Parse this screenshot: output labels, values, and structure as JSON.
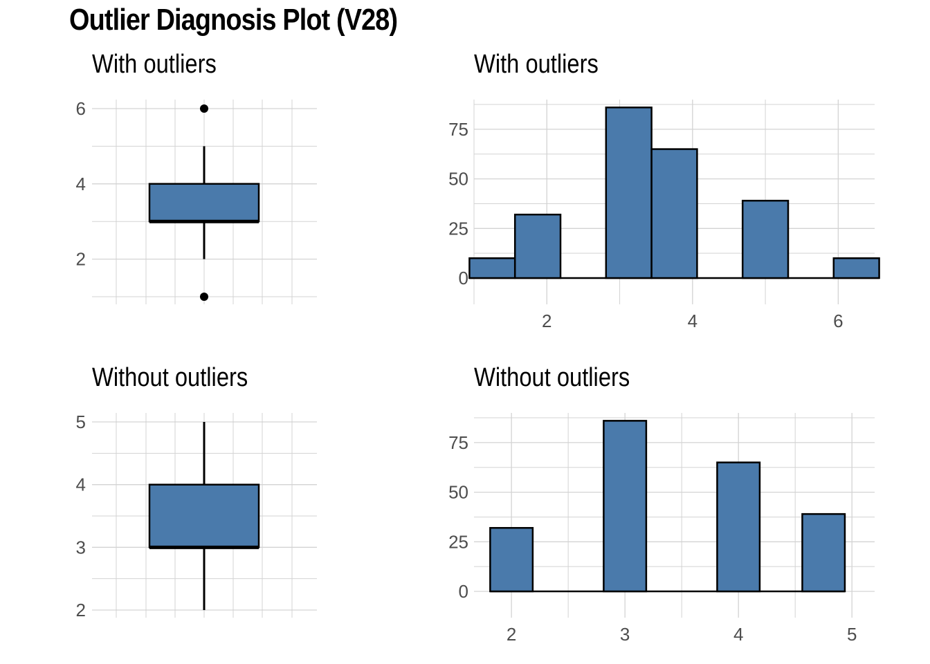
{
  "title": "Outlier Diagnosis Plot (V28)",
  "colors": {
    "fill": "#4a7aab",
    "outline": "#000000",
    "grid": "#d3d3d3",
    "text": "#4d4d4d"
  },
  "chart_data": [
    {
      "type": "box",
      "title": "With outliers",
      "ylim": [
        1,
        6
      ],
      "yticks": [
        2,
        4,
        6
      ],
      "q1": 3,
      "median": 3,
      "q3": 4,
      "whisker_low": 2,
      "whisker_high": 5,
      "outliers": [
        1,
        6
      ],
      "grid": true
    },
    {
      "type": "bar",
      "title": "With outliers",
      "x": [
        1.25,
        1.875,
        3.125,
        3.75,
        5.0,
        6.25
      ],
      "values": [
        10,
        32,
        86,
        65,
        39,
        10
      ],
      "xlim": [
        1,
        6.5
      ],
      "ylim": [
        0,
        90
      ],
      "xticks": [
        2,
        4,
        6
      ],
      "yticks": [
        0,
        25,
        50,
        75
      ],
      "grid": true
    },
    {
      "type": "box",
      "title": "Without outliers",
      "ylim": [
        2,
        5
      ],
      "yticks": [
        2,
        3,
        4,
        5
      ],
      "q1": 3,
      "median": 3,
      "q3": 4,
      "whisker_low": 2,
      "whisker_high": 5,
      "outliers": [],
      "grid": true
    },
    {
      "type": "bar",
      "title": "Without outliers",
      "x": [
        2,
        3,
        4,
        4.75
      ],
      "values": [
        32,
        86,
        65,
        39
      ],
      "xlim": [
        1.67,
        5.2
      ],
      "ylim": [
        0,
        90
      ],
      "xticks": [
        2,
        3,
        4,
        5
      ],
      "yticks": [
        0,
        25,
        50,
        75
      ],
      "grid": true
    }
  ]
}
